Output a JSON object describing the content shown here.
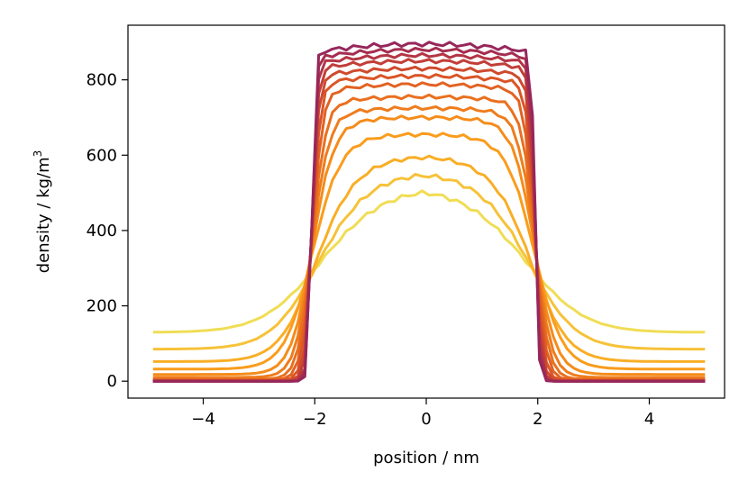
{
  "chart_data": {
    "type": "line",
    "xlabel": "position / nm",
    "ylabel": {
      "text": "density / kg/m",
      "superscript": "3"
    },
    "xlim": [
      -5.35,
      5.35
    ],
    "ylim": [
      -45,
      945
    ],
    "x_ticks": [
      {
        "value": -4,
        "label": "−4"
      },
      {
        "value": -2,
        "label": "−2"
      },
      {
        "value": 0,
        "label": "0"
      },
      {
        "value": 2,
        "label": "2"
      },
      {
        "value": 4,
        "label": "4"
      }
    ],
    "y_ticks": [
      {
        "value": 0,
        "label": "0"
      },
      {
        "value": 200,
        "label": "200"
      },
      {
        "value": 400,
        "label": "400"
      },
      {
        "value": 600,
        "label": "600"
      },
      {
        "value": 800,
        "label": "800"
      }
    ],
    "grid": false,
    "legend": "none",
    "x_range": [
      -4.9,
      5.0
    ],
    "series": [
      {
        "color": "#f0dd55",
        "plateau": 510,
        "baseline": 130,
        "width": 1.1,
        "noise": 6
      },
      {
        "color": "#f6c238",
        "plateau": 550,
        "baseline": 85,
        "width": 0.85,
        "noise": 6
      },
      {
        "color": "#f9ae26",
        "plateau": 595,
        "baseline": 52,
        "width": 0.65,
        "noise": 5
      },
      {
        "color": "#fa9c1c",
        "plateau": 655,
        "baseline": 32,
        "width": 0.5,
        "noise": 5
      },
      {
        "color": "#f58c1a",
        "plateau": 700,
        "baseline": 18,
        "width": 0.38,
        "noise": 5
      },
      {
        "color": "#ef7c1c",
        "plateau": 725,
        "baseline": 10,
        "width": 0.3,
        "noise": 5
      },
      {
        "color": "#e9701f",
        "plateau": 755,
        "baseline": 5,
        "width": 0.24,
        "noise": 5
      },
      {
        "color": "#e26222",
        "plateau": 788,
        "baseline": 3,
        "width": 0.19,
        "noise": 5
      },
      {
        "color": "#da5527",
        "plateau": 810,
        "baseline": 2,
        "width": 0.15,
        "noise": 5
      },
      {
        "color": "#cf4a2d",
        "plateau": 830,
        "baseline": 1,
        "width": 0.12,
        "noise": 5
      },
      {
        "color": "#c23e38",
        "plateau": 850,
        "baseline": 0,
        "width": 0.1,
        "noise": 5
      },
      {
        "color": "#b43544",
        "plateau": 865,
        "baseline": 0,
        "width": 0.08,
        "noise": 5
      },
      {
        "color": "#a52d50",
        "plateau": 880,
        "baseline": 0,
        "width": 0.07,
        "noise": 5
      },
      {
        "color": "#96275b",
        "plateau": 895,
        "baseline": 0,
        "width": 0.06,
        "noise": 6
      }
    ]
  }
}
